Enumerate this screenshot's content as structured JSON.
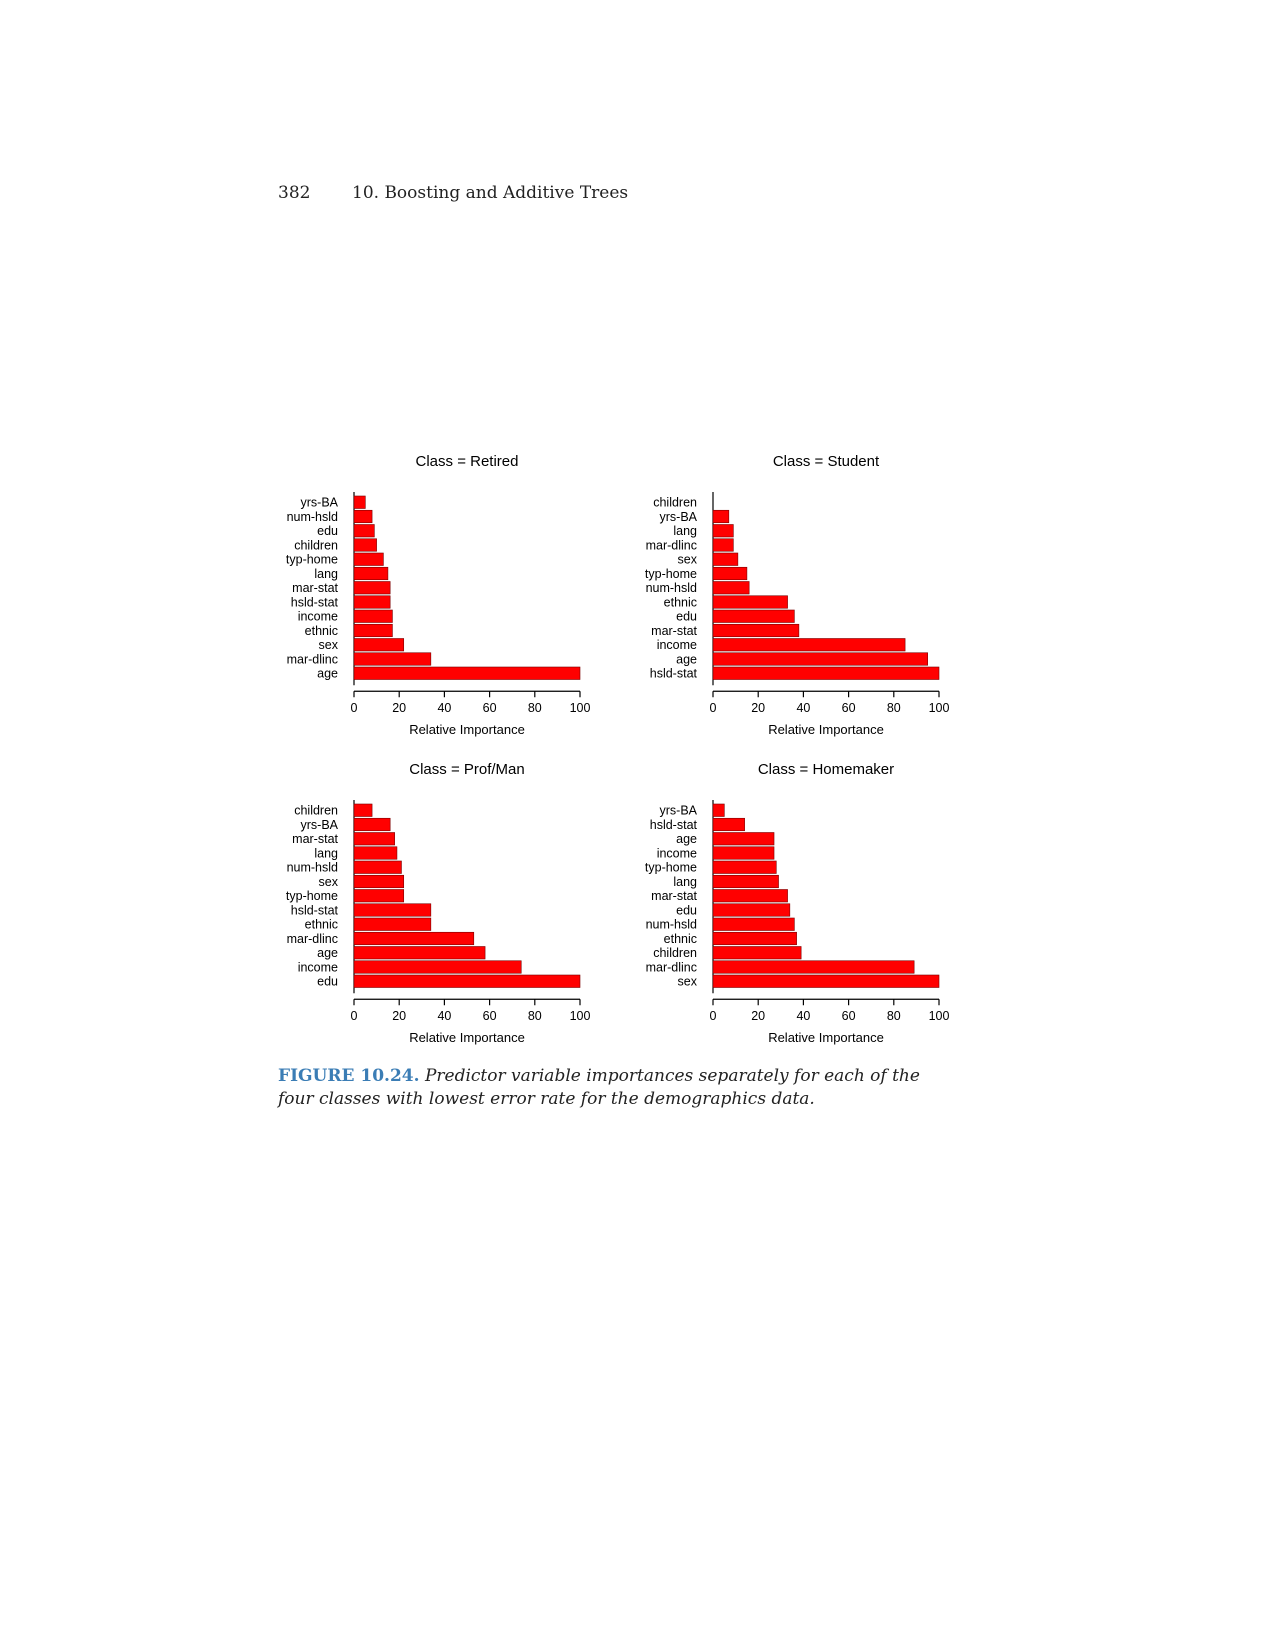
{
  "header": {
    "page_number": "382",
    "chapter": "10.  Boosting and Additive Trees"
  },
  "figure": {
    "label": "FIGURE 10.24.",
    "caption": "Predictor variable importances separately for each of the four classes with lowest error rate for the demographics data.",
    "bar_color": "#ff0000"
  },
  "chart_data": [
    {
      "type": "bar",
      "orientation": "horizontal",
      "title": "Class =  Retired",
      "xlabel": "Relative Importance",
      "xlim": [
        0,
        100
      ],
      "xticks": [
        "0",
        "20",
        "40",
        "60",
        "80",
        "100"
      ],
      "categories": [
        "yrs-BA",
        "num-hsld",
        "edu",
        "children",
        "typ-home",
        "lang",
        "mar-stat",
        "hsld-stat",
        "income",
        "ethnic",
        "sex",
        "mar-dlinc",
        "age"
      ],
      "values": [
        5,
        8,
        9,
        10,
        13,
        15,
        16,
        16,
        17,
        17,
        22,
        34,
        100
      ]
    },
    {
      "type": "bar",
      "orientation": "horizontal",
      "title": "Class =  Student",
      "xlabel": "Relative Importance",
      "xlim": [
        0,
        100
      ],
      "xticks": [
        "0",
        "20",
        "40",
        "60",
        "80",
        "100"
      ],
      "categories": [
        "children",
        "yrs-BA",
        "lang",
        "mar-dlinc",
        "sex",
        "typ-home",
        "num-hsld",
        "ethnic",
        "edu",
        "mar-stat",
        "income",
        "age",
        "hsld-stat"
      ],
      "values": [
        0,
        7,
        9,
        9,
        11,
        15,
        16,
        33,
        36,
        38,
        85,
        95,
        100
      ]
    },
    {
      "type": "bar",
      "orientation": "horizontal",
      "title": "Class =  Prof/Man",
      "xlabel": "Relative Importance",
      "xlim": [
        0,
        100
      ],
      "xticks": [
        "0",
        "20",
        "40",
        "60",
        "80",
        "100"
      ],
      "categories": [
        "children",
        "yrs-BA",
        "mar-stat",
        "lang",
        "num-hsld",
        "sex",
        "typ-home",
        "hsld-stat",
        "ethnic",
        "mar-dlinc",
        "age",
        "income",
        "edu"
      ],
      "values": [
        8,
        16,
        18,
        19,
        21,
        22,
        22,
        34,
        34,
        53,
        58,
        74,
        100
      ]
    },
    {
      "type": "bar",
      "orientation": "horizontal",
      "title": "Class =  Homemaker",
      "xlabel": "Relative Importance",
      "xlim": [
        0,
        100
      ],
      "xticks": [
        "0",
        "20",
        "40",
        "60",
        "80",
        "100"
      ],
      "categories": [
        "yrs-BA",
        "hsld-stat",
        "age",
        "income",
        "typ-home",
        "lang",
        "mar-stat",
        "edu",
        "num-hsld",
        "ethnic",
        "children",
        "mar-dlinc",
        "sex"
      ],
      "values": [
        5,
        14,
        27,
        27,
        28,
        29,
        33,
        34,
        36,
        37,
        39,
        89,
        100
      ]
    }
  ]
}
